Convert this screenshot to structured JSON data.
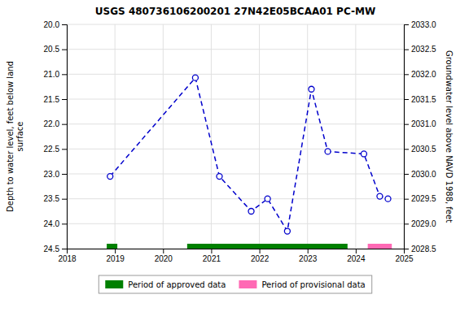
{
  "chart_data": {
    "type": "line",
    "title": "USGS 480736106200201 27N42E05BCAA01 PC-MW",
    "ylabel": "Depth to water level, feet below land\nsurface",
    "y2label": "Groundwater level above NAVD 1988, feet",
    "x": [
      2018.9,
      2020.67,
      2021.17,
      2021.83,
      2022.17,
      2022.58,
      2023.08,
      2023.42,
      2024.17,
      2024.5,
      2024.67
    ],
    "series": [
      {
        "color": "#0000cc",
        "line_style": "dashed",
        "marker": "circle",
        "values": [
          23.05,
          21.07,
          23.05,
          23.75,
          23.5,
          24.15,
          21.3,
          22.55,
          22.6,
          23.45,
          23.5
        ]
      }
    ],
    "xlim": [
      2018.0,
      2025.0
    ],
    "xticks": [
      2018,
      2019,
      2020,
      2021,
      2022,
      2023,
      2024,
      2025
    ],
    "ylim": [
      24.5,
      20.0
    ],
    "yticks": [
      {
        "value": 20.0,
        "label": "20.0"
      },
      20.5,
      {
        "value": 21.0,
        "label": "21.0"
      },
      21.5,
      {
        "value": 22.0,
        "label": "22.0"
      },
      22.5,
      {
        "value": 23.0,
        "label": "23.0"
      },
      23.5,
      {
        "value": 24.0,
        "label": "24.0"
      },
      24.5
    ],
    "y2lim": [
      2028.5,
      2033.0
    ],
    "y2ticks": [
      2028.5,
      {
        "value": 2029.0,
        "label": "2029.0"
      },
      2029.5,
      {
        "value": 2030.0,
        "label": "2030.0"
      },
      2030.5,
      {
        "value": 2031.0,
        "label": "2031.0"
      },
      2031.5,
      {
        "value": 2032.0,
        "label": "2032.0"
      },
      2032.5,
      {
        "value": 2033.0,
        "label": "2033.0"
      }
    ],
    "periods": [
      {
        "name": "Period of approved data",
        "color": "#008000",
        "ranges": [
          [
            2018.83,
            2019.05
          ],
          [
            2020.5,
            2023.83
          ]
        ]
      },
      {
        "name": "Period of provisional data",
        "color": "#ff69b4",
        "ranges": [
          [
            2024.25,
            2024.75
          ]
        ]
      }
    ],
    "grid": true,
    "legend": "bottom"
  }
}
